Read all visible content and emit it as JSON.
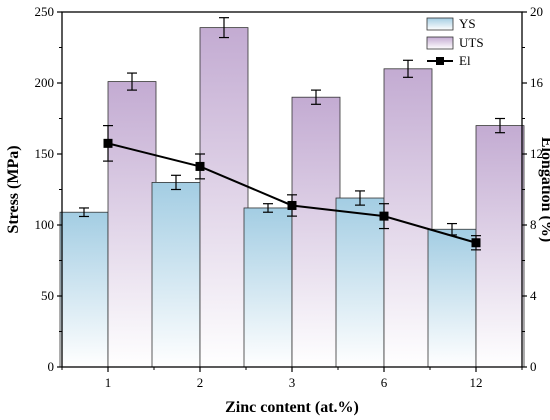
{
  "chart_data": {
    "type": "bar",
    "categories": [
      "1",
      "2",
      "3",
      "6",
      "12"
    ],
    "xlabel": "Zinc content (at.%)",
    "ylabel": "Stress (MPa)",
    "y2label": "Elongation (%)",
    "ylim": [
      0,
      250
    ],
    "y2lim": [
      0,
      20
    ],
    "yticks": [
      0,
      50,
      100,
      150,
      200,
      250
    ],
    "y2ticks": [
      0,
      4,
      8,
      12,
      16,
      20
    ],
    "legend_position": "top-right",
    "series": [
      {
        "name": "YS",
        "kind": "bar",
        "axis": "left",
        "color": "#a9d1e6",
        "values": [
          109,
          130,
          112,
          119,
          97
        ],
        "errors": [
          3,
          5,
          3,
          5,
          4
        ]
      },
      {
        "name": "UTS",
        "kind": "bar",
        "axis": "left",
        "color": "#c7b1d5",
        "values": [
          201,
          239,
          190,
          210,
          170
        ],
        "errors": [
          6,
          7,
          5,
          6,
          5
        ]
      },
      {
        "name": "El",
        "kind": "line",
        "axis": "right",
        "color": "#000000",
        "values": [
          12.6,
          11.3,
          9.1,
          8.5,
          7.0
        ],
        "errors": [
          1.0,
          0.7,
          0.6,
          0.7,
          0.4
        ]
      }
    ]
  }
}
